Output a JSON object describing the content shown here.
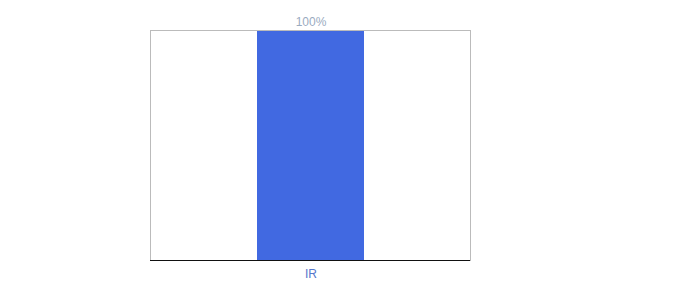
{
  "chart_data": {
    "type": "bar",
    "categories": [
      "IR"
    ],
    "values": [
      100
    ],
    "value_labels": [
      "100%"
    ],
    "color": "#4169e1",
    "ylim": [
      0,
      100
    ],
    "data_labels": true,
    "tick_labels": "x"
  }
}
